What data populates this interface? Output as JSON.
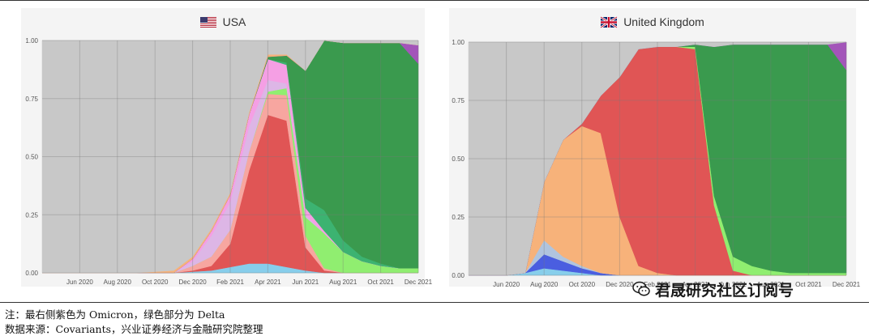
{
  "notes": {
    "line1": "注：最右侧紫色为 Omicron，绿色部分为 Delta",
    "line2": "数据来源：Covariants，兴业证券经济与金融研究院整理"
  },
  "watermark": {
    "text": "君晟研究社区订阅号",
    "icon": "wechat-icon"
  },
  "chart_data": [
    {
      "type": "area",
      "stacked": true,
      "normalized": true,
      "title": "USA",
      "flag": "us-flag-icon",
      "ylim": [
        0,
        1
      ],
      "yticks": [
        "0.00",
        "0.25",
        "0.50",
        "0.75",
        "1.00"
      ],
      "xticks": [
        "Jun 2020",
        "Aug 2020",
        "Oct 2020",
        "Dec 2020",
        "Feb 2021",
        "Apr 2021",
        "Jun 2021",
        "Aug 2021",
        "Oct 2021",
        "Dec 2021"
      ],
      "grid": true,
      "x": [
        "2020-04",
        "2020-05",
        "2020-06",
        "2020-07",
        "2020-08",
        "2020-09",
        "2020-10",
        "2020-11",
        "2020-12",
        "2021-01",
        "2021-02",
        "2021-03",
        "2021-04",
        "2021-05",
        "2021-06",
        "2021-07",
        "2021-08",
        "2021-09",
        "2021-10",
        "2021-11",
        "2021-12"
      ],
      "series": [
        {
          "color": "#87ceeb",
          "values": [
            0,
            0,
            0,
            0,
            0,
            0,
            0,
            0,
            0.005,
            0.01,
            0.025,
            0.04,
            0.04,
            0.025,
            0.01,
            0,
            0,
            0,
            0,
            0,
            0
          ]
        },
        {
          "color": "#e05555",
          "values": [
            0,
            0,
            0,
            0,
            0,
            0,
            0,
            0,
            0.005,
            0.02,
            0.1,
            0.4,
            0.64,
            0.63,
            0.1,
            0.01,
            0,
            0,
            0,
            0,
            0
          ]
        },
        {
          "color": "#f7a6a0",
          "values": [
            0,
            0,
            0,
            0,
            0,
            0,
            0,
            0,
            0.02,
            0.04,
            0.06,
            0.08,
            0.09,
            0.11,
            0.05,
            0.01,
            0,
            0,
            0,
            0,
            0
          ]
        },
        {
          "color": "#90ee70",
          "values": [
            0,
            0,
            0,
            0,
            0,
            0,
            0,
            0,
            0,
            0,
            0,
            0,
            0.01,
            0.03,
            0.08,
            0.15,
            0.09,
            0.05,
            0.03,
            0.02,
            0.02
          ]
        },
        {
          "color": "#ddb6e6",
          "values": [
            0,
            0,
            0,
            0,
            0,
            0,
            0,
            0,
            0.02,
            0.09,
            0.12,
            0.11,
            0.05,
            0.02,
            0.01,
            0,
            0,
            0,
            0,
            0,
            0
          ]
        },
        {
          "color": "#f59fe4",
          "values": [
            0,
            0,
            0,
            0,
            0,
            0,
            0,
            0,
            0.01,
            0.02,
            0.03,
            0.05,
            0.09,
            0.08,
            0.03,
            0.01,
            0,
            0,
            0,
            0,
            0
          ]
        },
        {
          "color": "#3cb371",
          "values": [
            0,
            0,
            0,
            0,
            0,
            0,
            0,
            0,
            0,
            0,
            0,
            0,
            0,
            0.01,
            0.04,
            0.09,
            0.05,
            0.02,
            0.01,
            0,
            0
          ]
        },
        {
          "color": "#3a9a4e",
          "values": [
            0,
            0,
            0,
            0,
            0,
            0,
            0,
            0,
            0,
            0,
            0,
            0,
            0.01,
            0.03,
            0.55,
            0.73,
            0.85,
            0.92,
            0.95,
            0.97,
            0.88
          ]
        },
        {
          "color": "#a355b9",
          "values": [
            0,
            0,
            0,
            0,
            0,
            0,
            0,
            0,
            0,
            0,
            0,
            0,
            0,
            0,
            0,
            0,
            0,
            0,
            0,
            0,
            0.08
          ]
        },
        {
          "color": "#f7b27a",
          "values": [
            0,
            0,
            0,
            0,
            0,
            0,
            0.005,
            0.01,
            0.01,
            0.01,
            0.01,
            0.01,
            0.01,
            0.005,
            0,
            0,
            0,
            0,
            0,
            0,
            0
          ]
        },
        {
          "color": "#c8c8c8",
          "values": [
            1,
            1,
            1,
            1,
            1,
            1,
            0.995,
            0.99,
            0.93,
            0.81,
            0.655,
            0.31,
            0.05,
            0.04,
            0.13,
            0,
            0.01,
            0.01,
            0.01,
            0.01,
            0.02
          ]
        }
      ]
    },
    {
      "type": "area",
      "stacked": true,
      "normalized": true,
      "title": "United Kingdom",
      "flag": "uk-flag-icon",
      "ylim": [
        0,
        1
      ],
      "yticks": [
        "0.00",
        "0.25",
        "0.50",
        "0.75",
        "1.00"
      ],
      "xticks": [
        "Jun 2020",
        "Aug 2020",
        "Oct 2020",
        "Dec 2020",
        "Feb 2021",
        "Apr 2021",
        "Jun 2021",
        "Aug 2021",
        "Oct 2021",
        "Dec 2021"
      ],
      "grid": true,
      "x": [
        "2020-04",
        "2020-05",
        "2020-06",
        "2020-07",
        "2020-08",
        "2020-09",
        "2020-10",
        "2020-11",
        "2020-12",
        "2021-01",
        "2021-02",
        "2021-03",
        "2021-04",
        "2021-05",
        "2021-06",
        "2021-07",
        "2021-08",
        "2021-09",
        "2021-10",
        "2021-11",
        "2021-12"
      ],
      "series": [
        {
          "color": "#87ceeb",
          "values": [
            0,
            0,
            0,
            0.01,
            0.03,
            0.02,
            0.01,
            0,
            0,
            0,
            0,
            0,
            0,
            0,
            0,
            0,
            0,
            0,
            0,
            0,
            0
          ]
        },
        {
          "color": "#4a5ee0",
          "values": [
            0,
            0,
            0,
            0,
            0.06,
            0.04,
            0.02,
            0.01,
            0,
            0,
            0,
            0,
            0,
            0,
            0,
            0,
            0,
            0,
            0,
            0,
            0
          ]
        },
        {
          "color": "#b0c4de",
          "values": [
            0,
            0,
            0,
            0,
            0.06,
            0.02,
            0.01,
            0,
            0,
            0,
            0,
            0,
            0,
            0,
            0,
            0,
            0,
            0,
            0,
            0,
            0
          ]
        },
        {
          "color": "#f7b27a",
          "values": [
            0,
            0,
            0,
            0,
            0.25,
            0.5,
            0.6,
            0.6,
            0.25,
            0.04,
            0.01,
            0,
            0,
            0,
            0,
            0,
            0,
            0,
            0,
            0,
            0
          ]
        },
        {
          "color": "#e05555",
          "values": [
            0,
            0,
            0,
            0,
            0,
            0,
            0.01,
            0.16,
            0.6,
            0.93,
            0.97,
            0.98,
            0.97,
            0.3,
            0.02,
            0,
            0,
            0,
            0,
            0,
            0
          ]
        },
        {
          "color": "#90ee70",
          "values": [
            0,
            0,
            0,
            0,
            0,
            0,
            0,
            0,
            0,
            0,
            0,
            0,
            0.01,
            0.04,
            0.06,
            0.04,
            0.02,
            0.01,
            0.01,
            0.01,
            0.01
          ]
        },
        {
          "color": "#3a9a4e",
          "values": [
            0,
            0,
            0,
            0,
            0,
            0,
            0,
            0,
            0,
            0,
            0,
            0,
            0.01,
            0.64,
            0.91,
            0.95,
            0.97,
            0.98,
            0.98,
            0.98,
            0.87
          ]
        },
        {
          "color": "#a355b9",
          "values": [
            0,
            0,
            0,
            0,
            0,
            0,
            0,
            0,
            0,
            0,
            0,
            0,
            0,
            0,
            0,
            0,
            0,
            0,
            0,
            0,
            0.12
          ]
        },
        {
          "color": "#c8c8c8",
          "values": [
            1,
            1,
            1,
            0.99,
            0.6,
            0.42,
            0.35,
            0.23,
            0.15,
            0.03,
            0.02,
            0.02,
            0.01,
            0.02,
            0.01,
            0.01,
            0.01,
            0.01,
            0.01,
            0.01,
            0
          ]
        }
      ]
    }
  ]
}
